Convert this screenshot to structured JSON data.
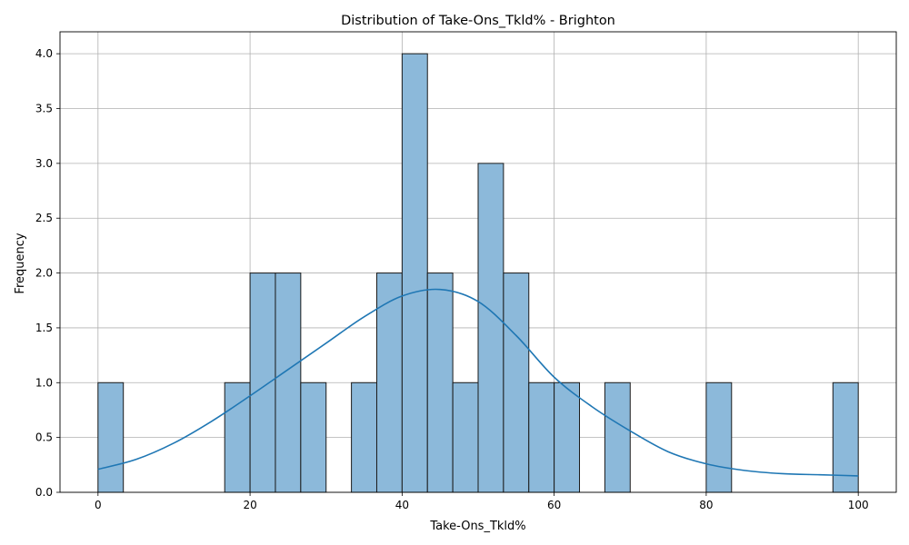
{
  "chart_data": {
    "type": "bar",
    "title": "Distribution of Take-Ons_Tkld% - Brighton",
    "xlabel": "Take-Ons_Tkld%",
    "ylabel": "Frequency",
    "xlim": [
      -5,
      105
    ],
    "ylim": [
      0,
      4.2
    ],
    "grid": true,
    "x_ticks": [
      "0",
      "20",
      "40",
      "60",
      "80",
      "100"
    ],
    "y_ticks": [
      "0.0",
      "0.5",
      "1.0",
      "1.5",
      "2.0",
      "2.5",
      "3.0",
      "3.5",
      "4.0"
    ],
    "bins": {
      "start": 0,
      "end": 100,
      "count": 30,
      "values": [
        1,
        0,
        0,
        0,
        0,
        1,
        2,
        2,
        1,
        0,
        1,
        2,
        4,
        2,
        1,
        3,
        2,
        1,
        1,
        0,
        1,
        0,
        0,
        0,
        1,
        0,
        0,
        0,
        0,
        1
      ]
    },
    "kde": {
      "x": [
        0,
        5,
        10,
        15,
        20,
        25,
        30,
        35,
        40,
        45,
        50,
        55,
        60,
        65,
        70,
        75,
        80,
        85,
        90,
        95,
        100
      ],
      "y": [
        0.21,
        0.3,
        0.45,
        0.65,
        0.88,
        1.12,
        1.36,
        1.6,
        1.79,
        1.85,
        1.74,
        1.43,
        1.05,
        0.78,
        0.56,
        0.37,
        0.26,
        0.2,
        0.17,
        0.16,
        0.15
      ]
    },
    "colors": {
      "bar_fill": "#8cb9da",
      "bar_edge": "#1a1a1a",
      "kde_line": "#1f77b4",
      "grid": "#b0b0b0"
    }
  }
}
